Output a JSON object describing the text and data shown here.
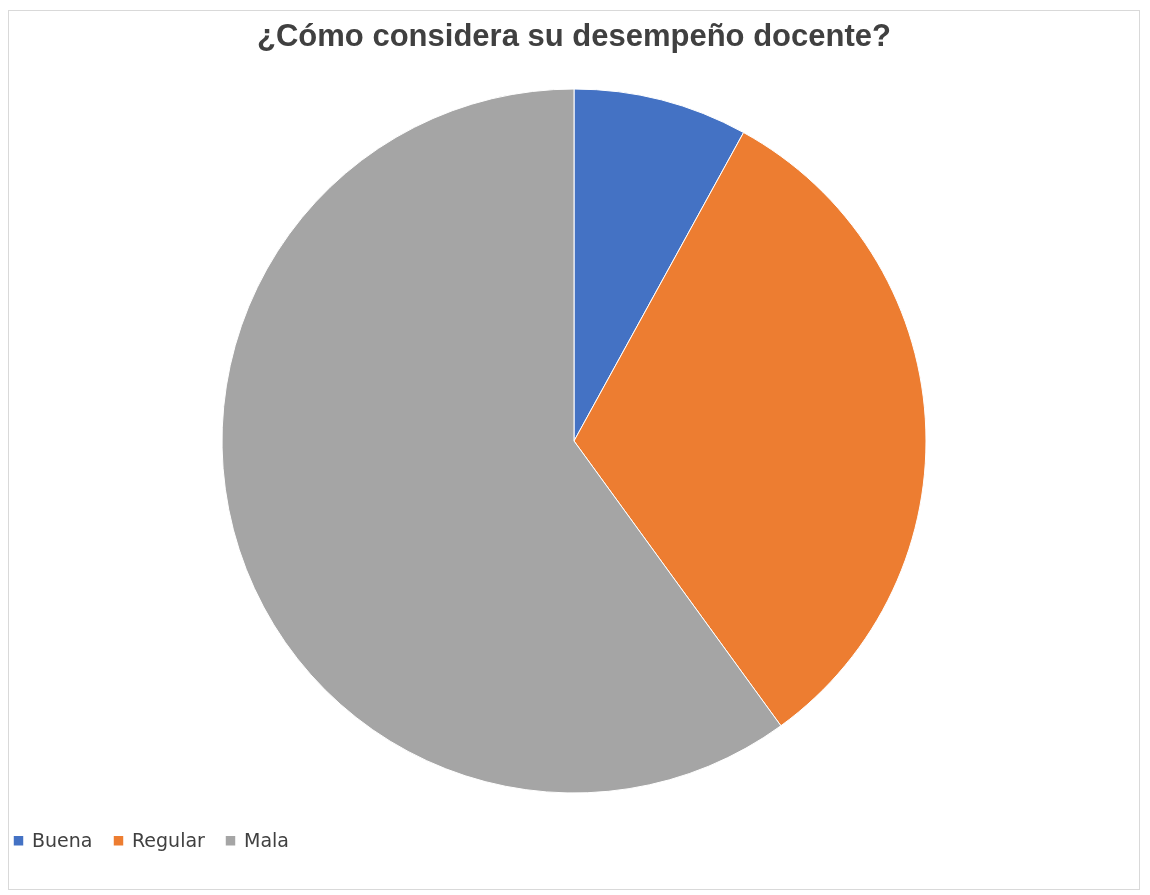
{
  "chart_data": {
    "type": "pie",
    "title": "¿Cómo considera su desempeño docente?",
    "categories": [
      "Buena",
      "Regular",
      "Mala"
    ],
    "values": [
      8,
      32,
      60
    ],
    "colors": [
      "#4472c4",
      "#ed7d31",
      "#a5a5a5"
    ],
    "legend": "bottom"
  }
}
